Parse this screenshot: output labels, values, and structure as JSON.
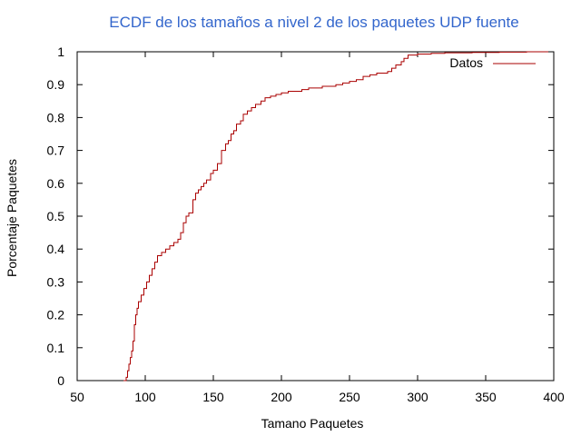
{
  "chart_data": {
    "type": "line",
    "title": "ECDF de los tamaños a nivel 2 de los paquetes UDP fuente",
    "xlabel": "Tamano Paquetes",
    "ylabel": "Porcentaje Paquetes",
    "xlim": [
      50,
      400
    ],
    "ylim": [
      0,
      1
    ],
    "xticks": [
      50,
      100,
      150,
      200,
      250,
      300,
      350,
      400
    ],
    "yticks": [
      0,
      0.1,
      0.2,
      0.3,
      0.4,
      0.5,
      0.6,
      0.7,
      0.8,
      0.9,
      1
    ],
    "grid": false,
    "legend_position": "top-right",
    "colors": {
      "title": "#3366cc",
      "series": "#aa0000",
      "axes": "#000000"
    },
    "series": [
      {
        "name": "Datos",
        "step": true,
        "x": [
          84,
          86,
          87,
          88,
          89,
          90,
          91,
          92,
          93,
          94,
          95,
          97,
          99,
          101,
          103,
          105,
          107,
          109,
          112,
          115,
          118,
          121,
          124,
          126,
          128,
          130,
          132,
          135,
          137,
          139,
          141,
          143,
          145,
          148,
          150,
          153,
          156,
          159,
          161,
          163,
          165,
          167,
          170,
          172,
          175,
          178,
          181,
          185,
          188,
          192,
          196,
          200,
          205,
          210,
          215,
          220,
          230,
          240,
          245,
          250,
          255,
          260,
          265,
          270,
          275,
          278,
          281,
          284,
          288,
          290,
          293,
          296,
          300,
          310,
          320,
          340,
          360,
          380,
          396
        ],
        "y": [
          0.0,
          0.01,
          0.03,
          0.05,
          0.07,
          0.09,
          0.12,
          0.17,
          0.2,
          0.22,
          0.24,
          0.26,
          0.28,
          0.3,
          0.32,
          0.34,
          0.36,
          0.38,
          0.39,
          0.4,
          0.41,
          0.42,
          0.43,
          0.45,
          0.48,
          0.5,
          0.51,
          0.55,
          0.57,
          0.58,
          0.59,
          0.6,
          0.61,
          0.63,
          0.64,
          0.66,
          0.7,
          0.72,
          0.73,
          0.75,
          0.76,
          0.78,
          0.79,
          0.81,
          0.82,
          0.83,
          0.84,
          0.85,
          0.86,
          0.865,
          0.87,
          0.875,
          0.88,
          0.88,
          0.885,
          0.89,
          0.895,
          0.9,
          0.905,
          0.91,
          0.915,
          0.925,
          0.93,
          0.935,
          0.935,
          0.94,
          0.95,
          0.96,
          0.97,
          0.98,
          0.99,
          0.99,
          0.993,
          0.995,
          0.997,
          0.998,
          0.999,
          1.0,
          1.0
        ]
      }
    ]
  }
}
